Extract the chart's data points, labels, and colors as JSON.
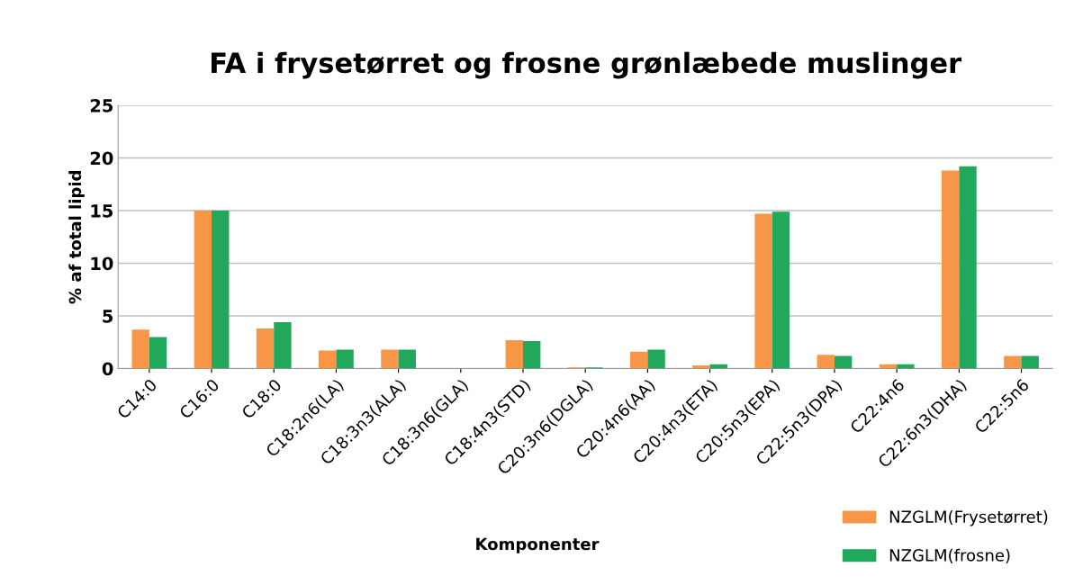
{
  "chart_data": {
    "type": "bar",
    "title": "FA i frysetørret og frosne grønlæbede muslinger",
    "xlabel": "Komponenter",
    "ylabel": "% af total lipid",
    "categories": [
      "C14:0",
      "C16:0",
      "C18:0",
      "C18:2n6(LA)",
      "C18:3n3(ALA)",
      "C18:3n6(GLA)",
      "C18:4n3(STD)",
      "C20:3n6(DGLA)",
      "C20:4n6(AA)",
      "C20:4n3(ETA)",
      "C20:5n3(EPA)",
      "C22:5n3(DPA)",
      "C22:4n6",
      "C22:6n3(DHA)",
      "C22:5n6"
    ],
    "series": [
      {
        "name": "NZGLM(Frysetørret)",
        "color": "#f79646",
        "values": [
          3.7,
          15.0,
          3.8,
          1.7,
          1.8,
          0,
          2.7,
          0.1,
          1.6,
          0.3,
          14.7,
          1.3,
          0.4,
          18.8,
          1.2
        ]
      },
      {
        "name": "NZGLM(frosne)",
        "color": "#22a85a",
        "values": [
          3.0,
          15.0,
          4.4,
          1.8,
          1.8,
          0,
          2.6,
          0.1,
          1.8,
          0.4,
          14.9,
          1.2,
          0.4,
          19.2,
          1.2
        ]
      }
    ],
    "ylim": [
      0,
      25
    ],
    "yticks": [
      0,
      5,
      10,
      15,
      20,
      25
    ],
    "grid": "y",
    "legend": "bottom right"
  }
}
